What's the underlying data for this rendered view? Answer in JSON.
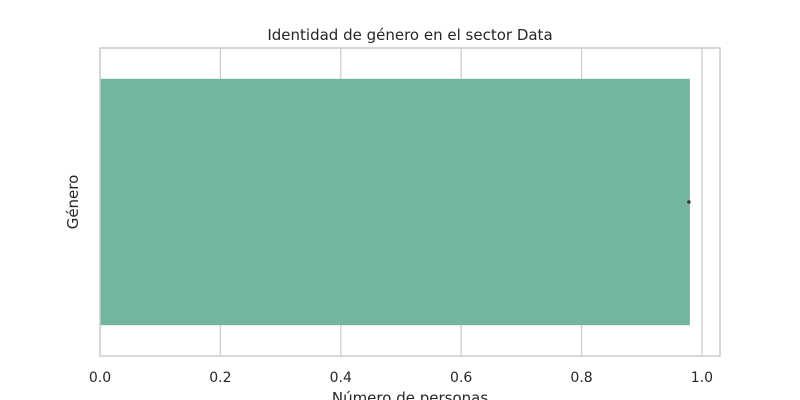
{
  "chart_data": {
    "type": "bar",
    "orientation": "horizontal",
    "title": "Identidad de género en el sector Data",
    "xlabel": "Número de personas",
    "ylabel": "Género",
    "categories": [
      ""
    ],
    "values": [
      0.98
    ],
    "xlim": [
      0,
      1.03
    ],
    "xticks": [
      0.0,
      0.2,
      0.4,
      0.6,
      0.8,
      1.0
    ],
    "xtick_labels": [
      "0.0",
      "0.2",
      "0.4",
      "0.6",
      "0.8",
      "1.0"
    ],
    "grid": true,
    "bar_color": "#74b5a0",
    "errorbar_color": "#3a3a3a"
  }
}
